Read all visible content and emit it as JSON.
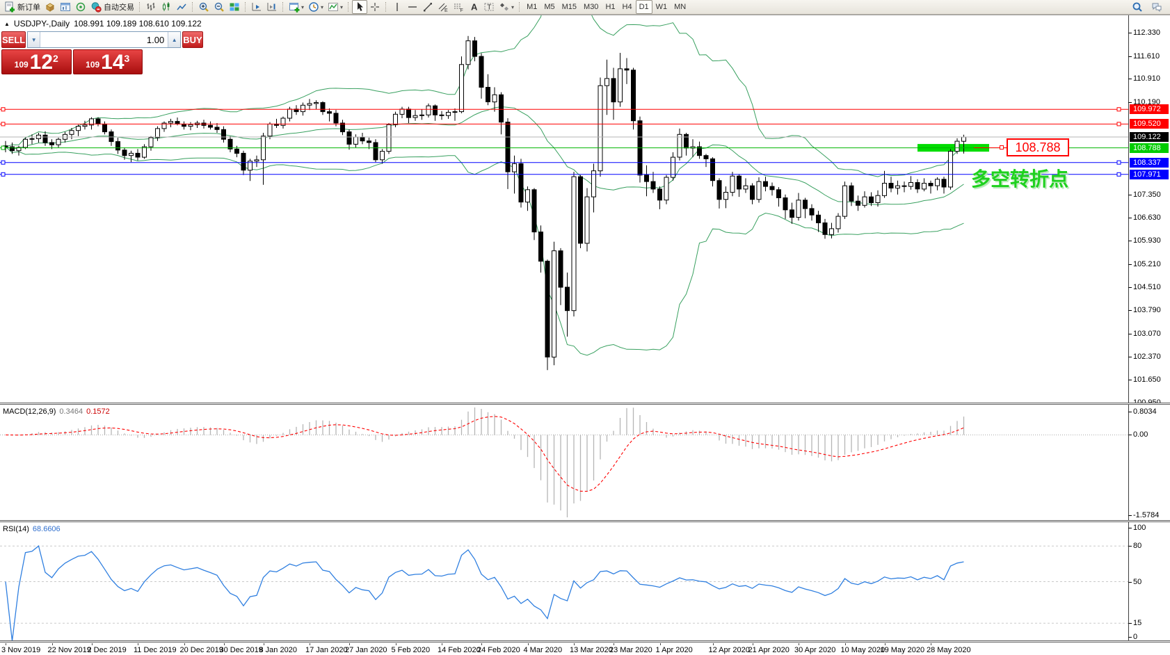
{
  "icons": {
    "dropdown": "▾",
    "collapse": "▲",
    "volume_down": "▼",
    "volume_up": "▲"
  },
  "window": {
    "symbol_title": "USDJPY-,Daily",
    "ohlc": "108.991 109.189 108.610 109.122"
  },
  "toolbar": {
    "groups": [
      {
        "name": "trading",
        "items": [
          {
            "name": "new-order",
            "label": "新订单"
          },
          {
            "name": "market-cube"
          },
          {
            "name": "chart-window"
          },
          {
            "name": "signal"
          },
          {
            "name": "autotrade",
            "label": "自动交易"
          }
        ]
      },
      {
        "name": "chart-type",
        "items": [
          {
            "name": "bar-chart"
          },
          {
            "name": "candle-chart"
          },
          {
            "name": "line-chart"
          }
        ]
      },
      {
        "name": "zoom",
        "items": [
          {
            "name": "zoom-in"
          },
          {
            "name": "zoom-out"
          },
          {
            "name": "tile-windows"
          }
        ]
      },
      {
        "name": "scroll",
        "items": [
          {
            "name": "scroll-to-end"
          },
          {
            "name": "auto-scroll"
          }
        ]
      },
      {
        "name": "new",
        "items": [
          {
            "name": "new-chart",
            "dropdown": true
          },
          {
            "name": "profiles",
            "dropdown": true
          },
          {
            "name": "indicators",
            "dropdown": true
          }
        ]
      },
      {
        "name": "pointer",
        "items": [
          {
            "name": "cursor",
            "active": true
          },
          {
            "name": "crosshair"
          }
        ]
      },
      {
        "name": "draw",
        "items": [
          {
            "name": "vertical-line"
          },
          {
            "name": "horizontal-line"
          },
          {
            "name": "trendline"
          },
          {
            "name": "equidistant-channel"
          },
          {
            "name": "fibonacci"
          },
          {
            "name": "text"
          },
          {
            "name": "text-label"
          },
          {
            "name": "arrows",
            "dropdown": true
          }
        ]
      },
      {
        "name": "timeframes",
        "items": [
          {
            "name": "tf-m1",
            "label": "M1"
          },
          {
            "name": "tf-m5",
            "label": "M5"
          },
          {
            "name": "tf-m15",
            "label": "M15"
          },
          {
            "name": "tf-m30",
            "label": "M30"
          },
          {
            "name": "tf-h1",
            "label": "H1"
          },
          {
            "name": "tf-h4",
            "label": "H4"
          },
          {
            "name": "tf-d1",
            "label": "D1",
            "active": true
          },
          {
            "name": "tf-w1",
            "label": "W1"
          },
          {
            "name": "tf-mn",
            "label": "MN"
          }
        ]
      }
    ],
    "right_items": [
      {
        "name": "search"
      },
      {
        "name": "community-chat"
      }
    ]
  },
  "one_click": {
    "sell_label": "SELL",
    "buy_label": "BUY",
    "volume": "1.00",
    "sell_price": {
      "small": "109",
      "big": "12",
      "sup": "2"
    },
    "buy_price": {
      "small": "109",
      "big": "14",
      "sup": "3"
    }
  },
  "indicators": {
    "macd": {
      "name": "MACD(12,26,9)",
      "value": "0.3464",
      "signal": "0.1572"
    },
    "rsi": {
      "name": "RSI(14)",
      "value": "68.6606"
    }
  },
  "annotations": {
    "price_label": "108.788",
    "pivot_text": "多空转折点"
  },
  "chart_data": {
    "type": "candlestick",
    "title": "USDJPY-,Daily",
    "timeframe": "D1",
    "price_axis": {
      "range": [
        100.95,
        112.865
      ],
      "ticks": [
        "112.330",
        "111.610",
        "110.910",
        "110.190",
        "107.350",
        "106.630",
        "105.930",
        "105.210",
        "104.510",
        "103.790",
        "103.070",
        "102.370",
        "101.650",
        "100.950"
      ]
    },
    "price_tags": [
      {
        "label": "109.972",
        "bg": "#ff0000"
      },
      {
        "label": "109.520",
        "bg": "#ff0000"
      },
      {
        "label": "109.122",
        "bg": "#000000"
      },
      {
        "label": "108.788",
        "bg": "#00cc00"
      },
      {
        "label": "108.337",
        "bg": "#0000ff"
      },
      {
        "label": "107.971",
        "bg": "#0000ff"
      }
    ],
    "lines": [
      {
        "price": 109.972,
        "color": "#ff0000",
        "handles": true
      },
      {
        "price": 109.52,
        "color": "#ff0000",
        "handles": true
      },
      {
        "price": 108.788,
        "color": "#00b400",
        "handles": false
      },
      {
        "price": 108.337,
        "color": "#0000ff",
        "handles": true
      },
      {
        "price": 107.971,
        "color": "#0000ff",
        "handles": true
      }
    ],
    "current_price": 109.122,
    "bollinger": {
      "period": 20,
      "deviation": 2,
      "color": "#38a05f"
    },
    "highlight": {
      "price": 108.788,
      "color": "#00dd00"
    },
    "x_labels": [
      [
        "3 Nov 2019",
        0
      ],
      [
        "22 Nov 2019",
        7
      ],
      [
        "2 Dec 2019",
        13
      ],
      [
        "11 Dec 2019",
        20
      ],
      [
        "20 Dec 2019",
        27
      ],
      [
        "30 Dec 2019",
        33
      ],
      [
        "8 Jan 2020",
        39
      ],
      [
        "17 Jan 2020",
        46
      ],
      [
        "27 Jan 2020",
        52
      ],
      [
        "5 Feb 2020",
        59
      ],
      [
        "14 Feb 2020",
        66
      ],
      [
        "24 Feb 2020",
        72
      ],
      [
        "4 Mar 2020",
        79
      ],
      [
        "13 Mar 2020",
        86
      ],
      [
        "23 Mar 2020",
        92
      ],
      [
        "1 Apr 2020",
        99
      ],
      [
        "12 Apr 2020",
        107
      ],
      [
        "21 Apr 2020",
        113
      ],
      [
        "30 Apr 2020",
        120
      ],
      [
        "10 May 2020",
        127
      ],
      [
        "19 May 2020",
        133
      ],
      [
        "28 May 2020",
        140
      ]
    ],
    "candles_ohlc": [
      [
        108.85,
        109.0,
        108.65,
        108.82
      ],
      [
        108.82,
        108.95,
        108.6,
        108.7
      ],
      [
        108.7,
        108.85,
        108.55,
        108.8
      ],
      [
        108.8,
        109.1,
        108.75,
        109.05
      ],
      [
        109.05,
        109.2,
        108.9,
        109.07
      ],
      [
        109.07,
        109.25,
        108.95,
        109.18
      ],
      [
        109.18,
        109.3,
        108.85,
        108.95
      ],
      [
        108.95,
        109.05,
        108.75,
        108.88
      ],
      [
        108.88,
        109.1,
        108.8,
        109.05
      ],
      [
        109.05,
        109.28,
        108.95,
        109.2
      ],
      [
        109.2,
        109.4,
        109.05,
        109.32
      ],
      [
        109.32,
        109.5,
        109.15,
        109.45
      ],
      [
        109.45,
        109.62,
        109.35,
        109.49
      ],
      [
        109.49,
        109.73,
        109.35,
        109.68
      ],
      [
        109.68,
        109.73,
        109.45,
        109.52
      ],
      [
        109.52,
        109.6,
        109.2,
        109.28
      ],
      [
        109.28,
        109.35,
        108.85,
        108.98
      ],
      [
        108.98,
        109.1,
        108.6,
        108.72
      ],
      [
        108.72,
        108.8,
        108.42,
        108.55
      ],
      [
        108.55,
        108.7,
        108.35,
        108.62
      ],
      [
        108.62,
        108.75,
        108.4,
        108.5
      ],
      [
        108.5,
        108.9,
        108.45,
        108.82
      ],
      [
        108.82,
        109.15,
        108.7,
        109.1
      ],
      [
        109.1,
        109.45,
        109.0,
        109.38
      ],
      [
        109.38,
        109.6,
        109.28,
        109.55
      ],
      [
        109.55,
        109.68,
        109.42,
        109.6
      ],
      [
        109.6,
        109.72,
        109.48,
        109.52
      ],
      [
        109.52,
        109.6,
        109.35,
        109.45
      ],
      [
        109.45,
        109.58,
        109.33,
        109.5
      ],
      [
        109.5,
        109.62,
        109.4,
        109.55
      ],
      [
        109.55,
        109.65,
        109.38,
        109.48
      ],
      [
        109.48,
        109.6,
        109.35,
        109.42
      ],
      [
        109.42,
        109.55,
        109.25,
        109.35
      ],
      [
        109.35,
        109.45,
        108.95,
        109.05
      ],
      [
        109.05,
        109.15,
        108.65,
        108.75
      ],
      [
        108.75,
        108.85,
        108.5,
        108.62
      ],
      [
        108.62,
        108.7,
        107.95,
        108.1
      ],
      [
        108.1,
        108.45,
        107.77,
        108.38
      ],
      [
        108.38,
        108.55,
        108.2,
        108.42
      ],
      [
        108.42,
        109.25,
        107.65,
        109.15
      ],
      [
        109.15,
        109.58,
        109.05,
        109.52
      ],
      [
        109.52,
        109.68,
        109.4,
        109.48
      ],
      [
        109.48,
        109.75,
        109.38,
        109.7
      ],
      [
        109.7,
        110.05,
        109.6,
        109.98
      ],
      [
        109.98,
        110.1,
        109.8,
        109.9
      ],
      [
        109.9,
        110.18,
        109.78,
        110.1
      ],
      [
        110.1,
        110.29,
        109.95,
        110.15
      ],
      [
        110.15,
        110.25,
        109.98,
        110.18
      ],
      [
        110.18,
        110.22,
        109.8,
        109.9
      ],
      [
        109.9,
        110.0,
        109.6,
        109.85
      ],
      [
        109.85,
        109.95,
        109.45,
        109.55
      ],
      [
        109.55,
        109.65,
        109.18,
        109.28
      ],
      [
        109.28,
        109.35,
        108.73,
        108.9
      ],
      [
        108.9,
        109.2,
        108.8,
        109.12
      ],
      [
        109.12,
        109.25,
        108.9,
        109.0
      ],
      [
        109.0,
        109.1,
        108.75,
        108.95
      ],
      [
        108.95,
        109.05,
        108.35,
        108.42
      ],
      [
        108.42,
        108.75,
        108.3,
        108.68
      ],
      [
        108.68,
        109.55,
        108.6,
        109.5
      ],
      [
        109.5,
        109.9,
        109.42,
        109.82
      ],
      [
        109.82,
        110.05,
        109.7,
        109.98
      ],
      [
        109.98,
        110.05,
        109.55,
        109.72
      ],
      [
        109.72,
        109.95,
        109.62,
        109.78
      ],
      [
        109.78,
        109.98,
        109.65,
        109.8
      ],
      [
        109.8,
        110.15,
        109.72,
        110.08
      ],
      [
        110.08,
        110.12,
        109.62,
        109.8
      ],
      [
        109.8,
        109.92,
        109.65,
        109.78
      ],
      [
        109.78,
        109.95,
        109.68,
        109.88
      ],
      [
        109.88,
        110.0,
        109.62,
        109.9
      ],
      [
        109.9,
        111.6,
        109.85,
        111.35
      ],
      [
        111.35,
        112.23,
        111.2,
        112.08
      ],
      [
        112.08,
        112.2,
        111.45,
        111.6
      ],
      [
        111.6,
        111.7,
        110.3,
        110.65
      ],
      [
        110.65,
        111.05,
        110.1,
        110.2
      ],
      [
        110.2,
        110.65,
        109.9,
        110.42
      ],
      [
        110.42,
        110.5,
        109.2,
        109.58
      ],
      [
        109.58,
        109.7,
        107.52,
        108.05
      ],
      [
        108.05,
        108.55,
        107.38,
        108.3
      ],
      [
        108.3,
        108.45,
        106.95,
        107.12
      ],
      [
        107.12,
        107.6,
        106.85,
        107.5
      ],
      [
        107.5,
        107.55,
        105.95,
        106.2
      ],
      [
        106.2,
        106.4,
        104.95,
        105.3
      ],
      [
        105.3,
        105.35,
        101.95,
        102.35
      ],
      [
        102.35,
        105.9,
        102.1,
        105.62
      ],
      [
        105.62,
        105.7,
        103.95,
        104.5
      ],
      [
        104.5,
        104.95,
        102.98,
        103.78
      ],
      [
        103.78,
        108.05,
        103.6,
        107.9
      ],
      [
        107.9,
        107.95,
        105.7,
        105.85
      ],
      [
        105.85,
        107.55,
        105.6,
        107.28
      ],
      [
        107.28,
        108.3,
        106.8,
        108.08
      ],
      [
        108.08,
        110.95,
        107.9,
        110.7
      ],
      [
        110.7,
        111.5,
        109.8,
        110.92
      ],
      [
        110.92,
        111.25,
        109.65,
        110.2
      ],
      [
        110.2,
        111.71,
        110.05,
        111.22
      ],
      [
        111.22,
        111.55,
        110.75,
        111.18
      ],
      [
        111.18,
        111.25,
        109.35,
        109.62
      ],
      [
        109.62,
        109.75,
        107.72,
        107.95
      ],
      [
        107.95,
        108.25,
        107.3,
        107.75
      ],
      [
        107.75,
        108.05,
        107.4,
        107.52
      ],
      [
        107.52,
        107.6,
        106.9,
        107.18
      ],
      [
        107.18,
        107.95,
        107.05,
        107.88
      ],
      [
        107.88,
        108.65,
        107.78,
        108.5
      ],
      [
        108.5,
        109.38,
        108.4,
        109.2
      ],
      [
        109.2,
        109.25,
        108.55,
        108.78
      ],
      [
        108.78,
        109.05,
        108.5,
        108.82
      ],
      [
        108.82,
        108.98,
        108.45,
        108.55
      ],
      [
        108.55,
        108.6,
        108.2,
        108.45
      ],
      [
        108.45,
        108.5,
        107.6,
        107.78
      ],
      [
        107.78,
        107.85,
        106.92,
        107.2
      ],
      [
        107.2,
        107.6,
        106.93,
        107.42
      ],
      [
        107.42,
        108.05,
        107.3,
        107.92
      ],
      [
        107.92,
        107.98,
        107.28,
        107.52
      ],
      [
        107.52,
        107.85,
        107.4,
        107.62
      ],
      [
        107.62,
        107.7,
        107.05,
        107.2
      ],
      [
        107.2,
        107.88,
        107.1,
        107.75
      ],
      [
        107.75,
        107.9,
        107.45,
        107.6
      ],
      [
        107.6,
        107.72,
        107.32,
        107.5
      ],
      [
        107.5,
        107.58,
        106.98,
        107.25
      ],
      [
        107.25,
        107.35,
        106.6,
        106.88
      ],
      [
        106.88,
        107.1,
        106.45,
        106.65
      ],
      [
        106.65,
        107.4,
        106.55,
        107.18
      ],
      [
        107.18,
        107.25,
        106.62,
        106.92
      ],
      [
        106.92,
        107.05,
        106.55,
        106.72
      ],
      [
        106.72,
        106.85,
        106.2,
        106.48
      ],
      [
        106.48,
        106.6,
        105.99,
        106.12
      ],
      [
        106.12,
        106.48,
        106.0,
        106.3
      ],
      [
        106.3,
        106.78,
        106.18,
        106.68
      ],
      [
        106.68,
        107.75,
        106.6,
        107.62
      ],
      [
        107.62,
        107.72,
        107.0,
        107.15
      ],
      [
        107.15,
        107.32,
        106.85,
        107.02
      ],
      [
        107.02,
        107.45,
        106.95,
        107.28
      ],
      [
        107.28,
        107.42,
        107.0,
        107.1
      ],
      [
        107.1,
        107.48,
        106.98,
        107.32
      ],
      [
        107.32,
        108.08,
        107.25,
        107.7
      ],
      [
        107.7,
        107.9,
        107.42,
        107.55
      ],
      [
        107.55,
        107.78,
        107.35,
        107.62
      ],
      [
        107.62,
        107.75,
        107.42,
        107.6
      ],
      [
        107.6,
        107.92,
        107.5,
        107.72
      ],
      [
        107.72,
        107.82,
        107.4,
        107.52
      ],
      [
        107.52,
        107.85,
        107.45,
        107.7
      ],
      [
        107.7,
        107.78,
        107.38,
        107.62
      ],
      [
        107.62,
        107.88,
        107.48,
        107.82
      ],
      [
        107.82,
        107.9,
        107.38,
        107.58
      ],
      [
        107.58,
        108.75,
        107.5,
        108.68
      ],
      [
        108.68,
        109.08,
        108.6,
        108.99
      ],
      [
        108.99,
        109.19,
        108.61,
        109.12
      ]
    ],
    "macd": {
      "params": "12,26,9",
      "value": 0.3464,
      "signal_value": 0.1572,
      "axis": [
        "0.8034",
        "0.00",
        "-1.5784"
      ],
      "histogram_color": "#b5b5b5",
      "signal_color": "#ff0000"
    },
    "rsi": {
      "period": 14,
      "value": 68.6606,
      "axis": [
        "100",
        "80",
        "50",
        "15",
        "0"
      ],
      "levels": [
        80,
        50,
        15
      ],
      "line_color": "#2f7fe0"
    }
  }
}
